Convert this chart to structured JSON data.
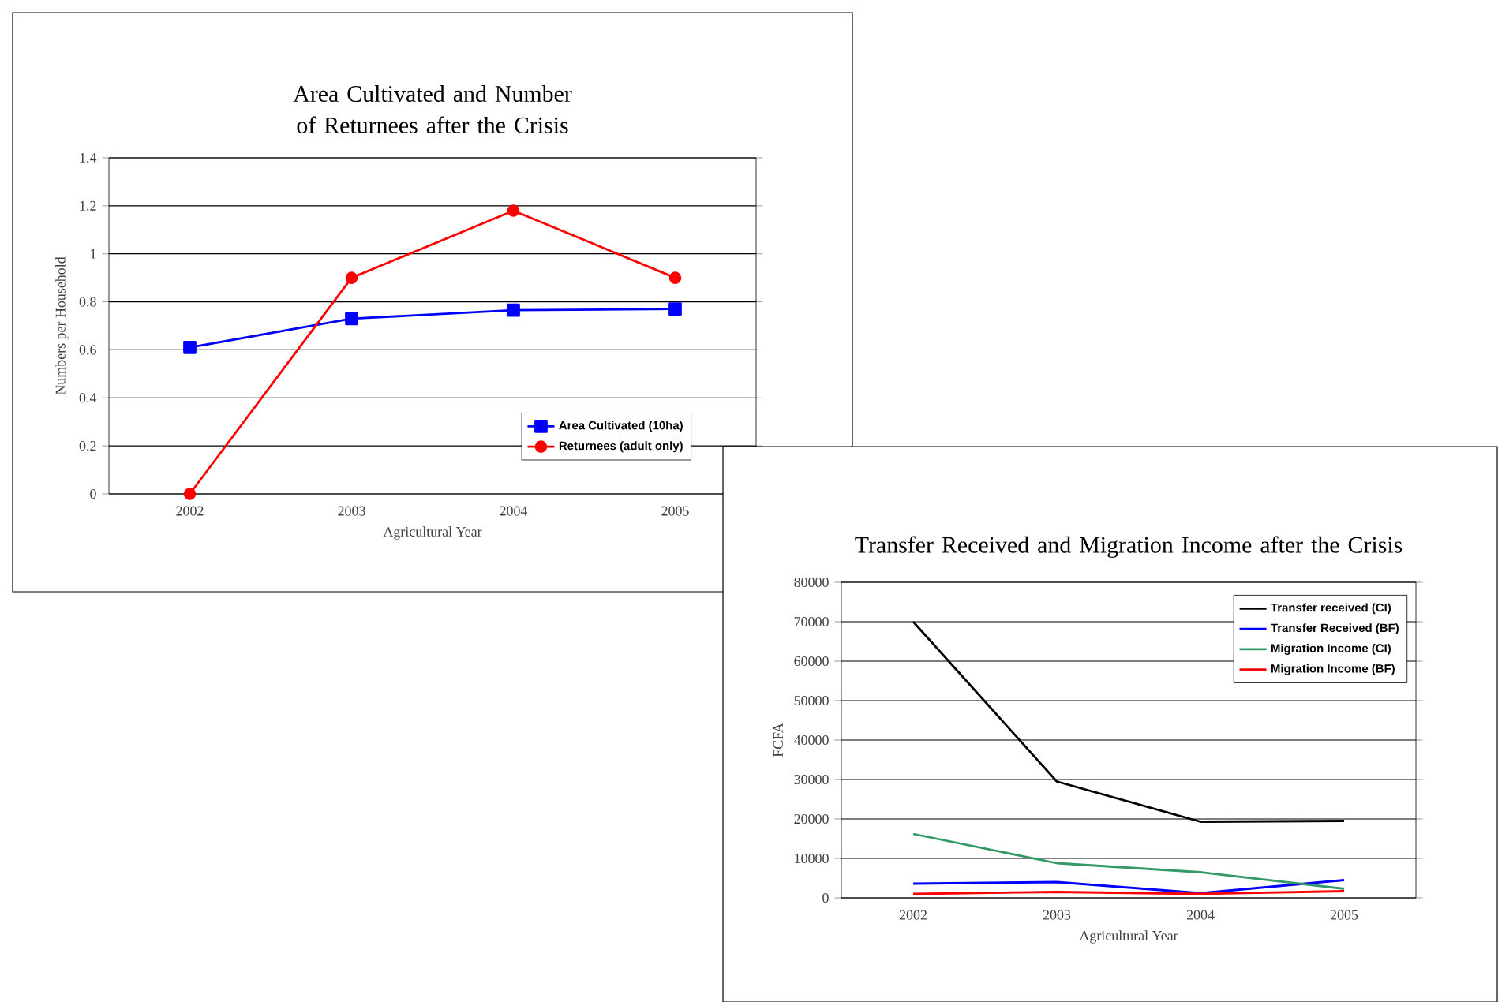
{
  "chart_data": [
    {
      "type": "line",
      "title": "Area Cultivated and Number of Returnees after the Crisis",
      "xlabel": "Agricultural Year",
      "ylabel": "Numbers per Household",
      "categories": [
        "2002",
        "2003",
        "2004",
        "2005"
      ],
      "ylim": [
        0,
        1.4
      ],
      "yticks": [
        0,
        0.2,
        0.4,
        0.6,
        0.8,
        1,
        1.2,
        1.4
      ],
      "grid": "y",
      "legend": "bottom right",
      "series": [
        {
          "name": "Area Cultivated (10ha)",
          "color": "#0000ff",
          "marker": "square",
          "values": [
            0.61,
            0.73,
            0.765,
            0.77
          ]
        },
        {
          "name": "Returnees (adult only)",
          "color": "#ff0000",
          "marker": "circle",
          "values": [
            0,
            0.9,
            1.18,
            0.9
          ]
        }
      ]
    },
    {
      "type": "line",
      "title": "Transfer Received and Migration Income after the Crisis",
      "xlabel": "Agricultural Year",
      "ylabel": "FCFA",
      "categories": [
        "2002",
        "2003",
        "2004",
        "2005"
      ],
      "ylim": [
        0,
        80000
      ],
      "yticks": [
        0,
        10000,
        20000,
        30000,
        40000,
        50000,
        60000,
        70000,
        80000
      ],
      "grid": "y",
      "legend": "top right",
      "marker": "none",
      "series": [
        {
          "name": "Transfer received (CI)",
          "color": "#000000",
          "values": [
            70000,
            29500,
            19300,
            19500
          ]
        },
        {
          "name": "Transfer Received (BF)",
          "color": "#0000ff",
          "values": [
            3600,
            4000,
            1200,
            4500
          ]
        },
        {
          "name": "Migration Income (CI)",
          "color": "#339966",
          "values": [
            16200,
            8800,
            6500,
            2300
          ]
        },
        {
          "name": "Migration Income (BF)",
          "color": "#ff0000",
          "values": [
            1000,
            1500,
            1000,
            1700
          ]
        }
      ]
    }
  ]
}
